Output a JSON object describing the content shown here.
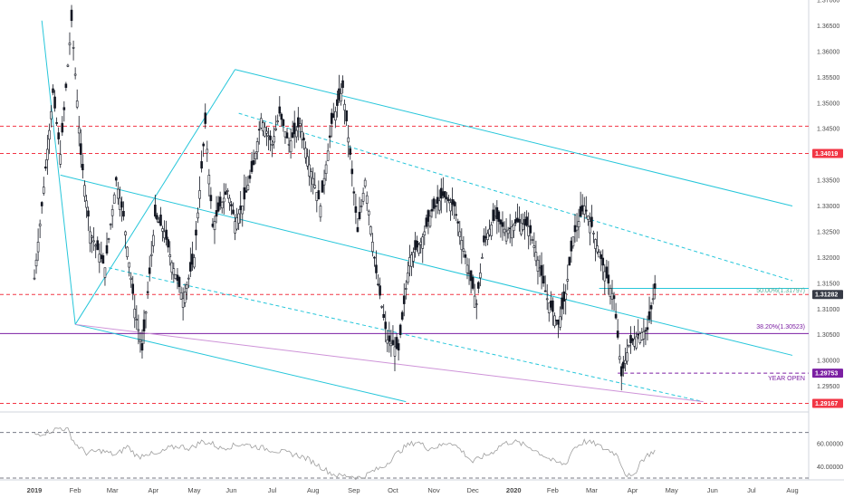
{
  "chart_data": {
    "type": "candlestick",
    "panels": [
      "price",
      "oscillator"
    ],
    "price_axis": {
      "ylim": [
        1.29,
        1.37
      ],
      "tick_labels": [
        "1.37000",
        "1.36500",
        "1.36000",
        "1.35500",
        "1.35000",
        "1.34500",
        "1.34000",
        "1.33500",
        "1.33000",
        "1.32500",
        "1.32000",
        "1.31500",
        "1.31000",
        "1.30500",
        "1.30000",
        "1.29500"
      ],
      "tick_values": [
        1.37,
        1.365,
        1.36,
        1.355,
        1.35,
        1.345,
        1.34,
        1.335,
        1.33,
        1.325,
        1.32,
        1.315,
        1.31,
        1.305,
        1.3,
        1.295
      ],
      "position": "right"
    },
    "oscillator_axis": {
      "ylim": [
        30,
        80
      ],
      "tick_labels": [
        "60.00000",
        "40.00000"
      ],
      "tick_values": [
        60,
        40
      ],
      "levels": [
        70,
        30
      ]
    },
    "x_axis": {
      "tick_labels": [
        "2019",
        "Feb",
        "Mar",
        "Apr",
        "May",
        "Jun",
        "Jul",
        "Aug",
        "Sep",
        "Oct",
        "Nov",
        "Dec",
        "2020",
        "Feb",
        "Mar",
        "Apr",
        "May",
        "Jun",
        "Jul",
        "Aug"
      ],
      "tick_index": [
        0,
        22,
        42,
        64,
        86,
        106,
        128,
        150,
        172,
        193,
        215,
        236,
        258,
        279,
        300,
        322,
        343,
        365,
        386,
        408
      ]
    },
    "price_path": [
      [
        0,
        1.316
      ],
      [
        4,
        1.33
      ],
      [
        10,
        1.352
      ],
      [
        14,
        1.34
      ],
      [
        20,
        1.366
      ],
      [
        25,
        1.34
      ],
      [
        30,
        1.325
      ],
      [
        38,
        1.318
      ],
      [
        44,
        1.335
      ],
      [
        48,
        1.328
      ],
      [
        54,
        1.31
      ],
      [
        58,
        1.302
      ],
      [
        65,
        1.328
      ],
      [
        70,
        1.325
      ],
      [
        74,
        1.319
      ],
      [
        80,
        1.312
      ],
      [
        86,
        1.32
      ],
      [
        92,
        1.346
      ],
      [
        96,
        1.326
      ],
      [
        100,
        1.33
      ],
      [
        104,
        1.333
      ],
      [
        108,
        1.327
      ],
      [
        112,
        1.33
      ],
      [
        118,
        1.338
      ],
      [
        122,
        1.347
      ],
      [
        128,
        1.342
      ],
      [
        132,
        1.348
      ],
      [
        137,
        1.342
      ],
      [
        143,
        1.346
      ],
      [
        148,
        1.338
      ],
      [
        154,
        1.33
      ],
      [
        160,
        1.346
      ],
      [
        166,
        1.353
      ],
      [
        170,
        1.34
      ],
      [
        174,
        1.325
      ],
      [
        178,
        1.335
      ],
      [
        184,
        1.317
      ],
      [
        190,
        1.304
      ],
      [
        196,
        1.302
      ],
      [
        202,
        1.32
      ],
      [
        208,
        1.323
      ],
      [
        214,
        1.329
      ],
      [
        220,
        1.332
      ],
      [
        226,
        1.33
      ],
      [
        232,
        1.32
      ],
      [
        238,
        1.311
      ],
      [
        242,
        1.323
      ],
      [
        248,
        1.328
      ],
      [
        254,
        1.325
      ],
      [
        260,
        1.327
      ],
      [
        266,
        1.326
      ],
      [
        270,
        1.321
      ],
      [
        276,
        1.312
      ],
      [
        282,
        1.307
      ],
      [
        286,
        1.313
      ],
      [
        290,
        1.324
      ],
      [
        296,
        1.33
      ],
      [
        300,
        1.326
      ],
      [
        304,
        1.321
      ],
      [
        308,
        1.316
      ],
      [
        312,
        1.312
      ],
      [
        316,
        1.297
      ],
      [
        320,
        1.303
      ],
      [
        325,
        1.305
      ],
      [
        330,
        1.306
      ],
      [
        334,
        1.314
      ]
    ],
    "rsi_path": [
      [
        0,
        68
      ],
      [
        6,
        70
      ],
      [
        10,
        72
      ],
      [
        14,
        74
      ],
      [
        18,
        72
      ],
      [
        22,
        60
      ],
      [
        28,
        52
      ],
      [
        36,
        54
      ],
      [
        44,
        50
      ],
      [
        50,
        58
      ],
      [
        56,
        48
      ],
      [
        60,
        52
      ],
      [
        66,
        50
      ],
      [
        72,
        56
      ],
      [
        78,
        58
      ],
      [
        84,
        56
      ],
      [
        90,
        62
      ],
      [
        96,
        60
      ],
      [
        100,
        56
      ],
      [
        106,
        58
      ],
      [
        112,
        60
      ],
      [
        118,
        58
      ],
      [
        124,
        56
      ],
      [
        130,
        54
      ],
      [
        136,
        52
      ],
      [
        142,
        50
      ],
      [
        148,
        46
      ],
      [
        152,
        42
      ],
      [
        156,
        38
      ],
      [
        160,
        34
      ],
      [
        164,
        32
      ],
      [
        170,
        32
      ],
      [
        176,
        30
      ],
      [
        182,
        36
      ],
      [
        188,
        40
      ],
      [
        194,
        50
      ],
      [
        200,
        58
      ],
      [
        206,
        62
      ],
      [
        212,
        56
      ],
      [
        218,
        58
      ],
      [
        224,
        62
      ],
      [
        230,
        54
      ],
      [
        236,
        44
      ],
      [
        240,
        48
      ],
      [
        246,
        52
      ],
      [
        252,
        60
      ],
      [
        258,
        62
      ],
      [
        262,
        60
      ],
      [
        268,
        56
      ],
      [
        274,
        50
      ],
      [
        280,
        44
      ],
      [
        286,
        42
      ],
      [
        290,
        56
      ],
      [
        296,
        62
      ],
      [
        302,
        60
      ],
      [
        306,
        56
      ],
      [
        310,
        54
      ],
      [
        314,
        50
      ],
      [
        318,
        34
      ],
      [
        322,
        30
      ],
      [
        326,
        44
      ],
      [
        330,
        50
      ],
      [
        334,
        54
      ]
    ],
    "horizontal_levels": [
      {
        "value": 1.3455,
        "color": "#f23645",
        "style": "dashed"
      },
      {
        "value": 1.34019,
        "color": "#f23645",
        "style": "dashed"
      },
      {
        "value": 1.31282,
        "color": "#f23645",
        "style": "dashed"
      },
      {
        "value": 1.30523,
        "color": "#7b1fa2",
        "style": "solid"
      },
      {
        "value": 1.29167,
        "color": "#f23645",
        "style": "dashed"
      },
      {
        "value": 1.29753,
        "color": "#7b1fa2",
        "style": "dashed"
      }
    ],
    "badges": [
      {
        "label": "1.34019",
        "value": 1.34019,
        "color": "#f23645"
      },
      {
        "label": "1.31282",
        "value": 1.31282,
        "color": "#363a45"
      },
      {
        "label": "1.29753",
        "value": 1.29753,
        "color": "#7b1fa2"
      },
      {
        "label": "1.29167",
        "value": 1.29167,
        "color": "#f23645"
      }
    ],
    "annotations": [
      {
        "text": "50.00%(1.31797)",
        "value": 1.313,
        "color": "#4caf9a"
      },
      {
        "text": "38.20%(1.30523)",
        "value": 1.306,
        "color": "#7b1fa2"
      },
      {
        "text": "YEAR OPEN",
        "value": 1.296,
        "color": "#7b1fa2"
      }
    ],
    "colors": {
      "candle": "#131722",
      "channel": "#26c6da",
      "fib_line": "#7b1fa2",
      "trendline_pink": "#ce93d8",
      "level_red": "#f23645",
      "rsi_line": "#9e9e9e",
      "axis_text": "#4a4a4a"
    }
  }
}
